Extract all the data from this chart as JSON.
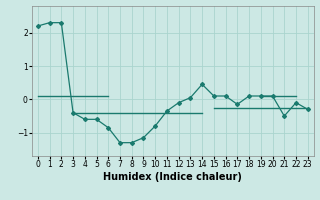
{
  "x": [
    0,
    1,
    2,
    3,
    4,
    5,
    6,
    7,
    8,
    9,
    10,
    11,
    12,
    13,
    14,
    15,
    16,
    17,
    18,
    19,
    20,
    21,
    22,
    23
  ],
  "y": [
    2.2,
    2.3,
    2.3,
    -0.4,
    -0.6,
    -0.6,
    -0.85,
    -1.3,
    -1.3,
    -1.15,
    -0.8,
    -0.35,
    -0.1,
    0.05,
    0.45,
    0.1,
    0.1,
    -0.15,
    0.1,
    0.1,
    0.1,
    -0.5,
    -0.1,
    -0.3
  ],
  "y2_segments": [
    {
      "x": [
        0,
        6
      ],
      "y": [
        0.1,
        0.1
      ]
    },
    {
      "x": [
        3,
        14
      ],
      "y": [
        -0.42,
        -0.42
      ]
    },
    {
      "x": [
        15,
        23
      ],
      "y": [
        -0.25,
        -0.25
      ]
    },
    {
      "x": [
        19,
        22
      ],
      "y": [
        0.1,
        0.1
      ]
    }
  ],
  "line_color": "#1a7a6e",
  "bg_color": "#cce8e4",
  "grid_color": "#aad4ce",
  "xlabel": "Humidex (Indice chaleur)",
  "xlim": [
    -0.5,
    23.5
  ],
  "ylim": [
    -1.7,
    2.8
  ],
  "yticks": [
    -1,
    0,
    1,
    2
  ],
  "xticks": [
    0,
    1,
    2,
    3,
    4,
    5,
    6,
    7,
    8,
    9,
    10,
    11,
    12,
    13,
    14,
    15,
    16,
    17,
    18,
    19,
    20,
    21,
    22,
    23
  ],
  "xlabel_fontsize": 7,
  "tick_fontsize": 5.5,
  "fig_width": 3.2,
  "fig_height": 2.0,
  "dpi": 100
}
